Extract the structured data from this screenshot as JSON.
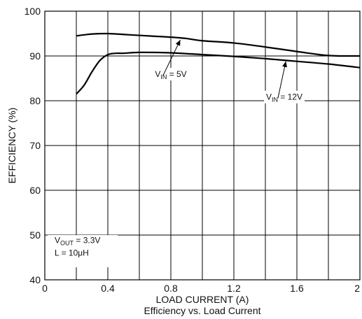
{
  "chart_data": {
    "type": "line",
    "title": "Efficiency vs. Load Current",
    "xlabel": "LOAD CURRENT (A)",
    "ylabel": "EFFICIENCY (%)",
    "xlim": [
      0,
      2
    ],
    "ylim": [
      40,
      100
    ],
    "xticks": [
      "0",
      "0.4",
      "0.8",
      "1.2",
      "1.6",
      "2"
    ],
    "yticks": [
      "40",
      "50",
      "60",
      "70",
      "80",
      "90",
      "100"
    ],
    "grid": true,
    "series": [
      {
        "name": "V_IN = 5V",
        "label_main": "V",
        "label_sub": "IN",
        "label_tail": " = 5V",
        "x": [
          0.2,
          0.3,
          0.4,
          0.5,
          0.6,
          0.7,
          0.8,
          0.9,
          1.0,
          1.2,
          1.4,
          1.6,
          1.8,
          2.0
        ],
        "y": [
          94.5,
          94.9,
          95.0,
          94.8,
          94.6,
          94.4,
          94.2,
          93.9,
          93.4,
          92.9,
          92.0,
          91.0,
          90.1,
          90.0
        ]
      },
      {
        "name": "V_IN = 12V",
        "label_main": "V",
        "label_sub": "IN",
        "label_tail": " = 12V",
        "x": [
          0.2,
          0.25,
          0.3,
          0.35,
          0.4,
          0.45,
          0.5,
          0.6,
          0.8,
          1.0,
          1.2,
          1.4,
          1.6,
          1.8,
          2.0
        ],
        "y": [
          81.5,
          83.5,
          86.5,
          89.0,
          90.3,
          90.6,
          90.6,
          90.8,
          90.7,
          90.3,
          89.9,
          89.4,
          88.8,
          88.2,
          87.4
        ]
      }
    ],
    "annotations": {
      "vout_main": "V",
      "vout_sub": "OUT",
      "vout_tail": " = 3.3V",
      "inductor": "L = 10μH"
    }
  }
}
